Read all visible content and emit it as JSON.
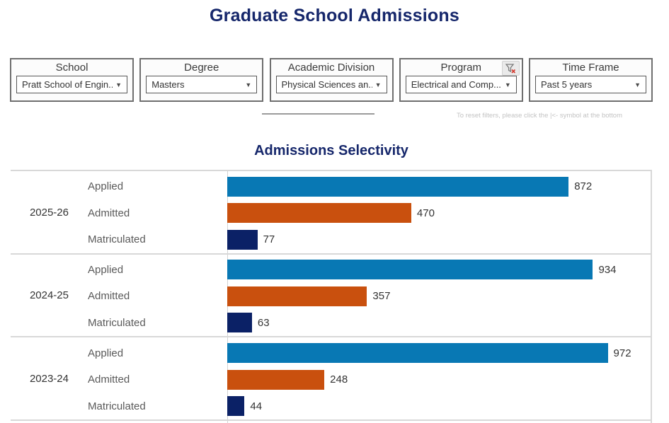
{
  "title": "Graduate School Admissions",
  "reset_note": "To reset filters, please click the |<- symbol at the bottom",
  "filters": [
    {
      "label": "School",
      "value": "Pratt School of Engin...",
      "has_clear_icon": false
    },
    {
      "label": "Degree",
      "value": "Masters",
      "has_clear_icon": false
    },
    {
      "label": "Academic Division",
      "value": "Physical Sciences an...",
      "has_clear_icon": false
    },
    {
      "label": "Program",
      "value": "Electrical and Comp...",
      "has_clear_icon": true
    },
    {
      "label": "Time Frame",
      "value": "Past 5 years",
      "has_clear_icon": false
    }
  ],
  "colors": {
    "title_navy": "#16276b",
    "applied_blue": "#0878b4",
    "admitted_orange": "#c9500e",
    "matriculated_navy": "#0b2166",
    "grid_gray": "#d8d8d8",
    "clear_filter_red": "#d43a2f"
  },
  "chart_data": {
    "type": "bar",
    "orientation": "horizontal",
    "title": "Admissions Selectivity",
    "categories": [
      "Applied",
      "Admitted",
      "Matriculated"
    ],
    "series_colors": [
      "#0878b4",
      "#c9500e",
      "#0b2166"
    ],
    "groups": [
      {
        "year": "2025-26",
        "values": [
          872,
          470,
          77
        ]
      },
      {
        "year": "2024-25",
        "values": [
          934,
          357,
          63
        ]
      },
      {
        "year": "2023-24",
        "values": [
          972,
          248,
          44
        ]
      }
    ],
    "xlim": [
      0,
      1085
    ],
    "value_labels": true,
    "grid": true,
    "legend": false
  }
}
